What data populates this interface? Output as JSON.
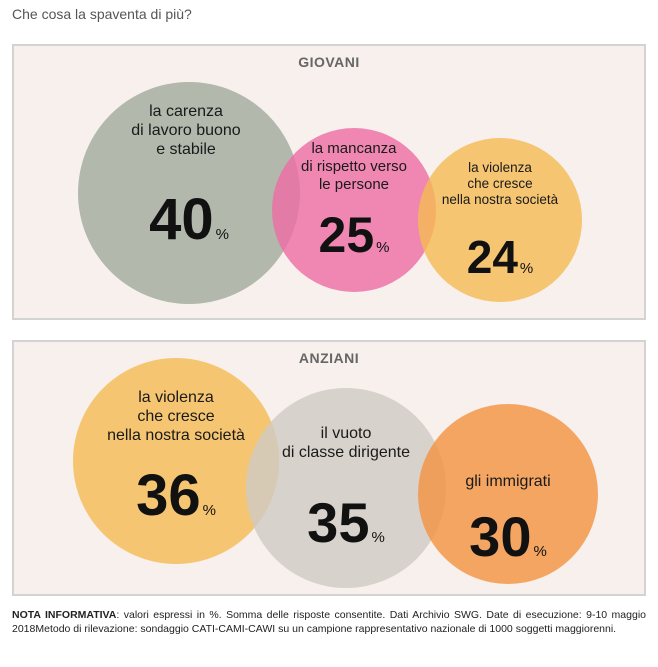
{
  "question": "Che cosa la spaventa di più?",
  "colors": {
    "gray_green": "#a2ab9c",
    "pink": "#ed6fa5",
    "light_orange": "#f5bb55",
    "light_gray": "#d0cac3",
    "orange": "#f39443"
  },
  "panels": {
    "giovani": {
      "title": "GIOVANI",
      "items": [
        {
          "label": "la carenza di lavoro buono e stabile",
          "label_lines": [
            "la carenza",
            "di lavoro buono",
            "e stabile"
          ],
          "value": "40",
          "unit": "%",
          "color": "#a2ab9c"
        },
        {
          "label": "la mancanza di rispetto verso le persone",
          "label_lines": [
            "la mancanza",
            "di rispetto verso",
            "le persone"
          ],
          "value": "25",
          "unit": "%",
          "color": "#ed6fa5"
        },
        {
          "label": "la violenza che cresce nella nostra società",
          "label_lines": [
            "la violenza",
            "che cresce",
            "nella nostra società"
          ],
          "value": "24",
          "unit": "%",
          "color": "#f5bb55"
        }
      ]
    },
    "anziani": {
      "title": "ANZIANI",
      "items": [
        {
          "label": "la violenza che cresce nella nostra società",
          "label_lines": [
            "la violenza",
            "che cresce",
            "nella nostra società"
          ],
          "value": "36",
          "unit": "%",
          "color": "#f5bb55"
        },
        {
          "label": "il vuoto di classe dirigente",
          "label_lines": [
            "il vuoto",
            "di classe dirigente"
          ],
          "value": "35",
          "unit": "%",
          "color": "#d0cac3"
        },
        {
          "label": "gli immigrati",
          "label_lines": [
            "gli immigrati"
          ],
          "value": "30",
          "unit": "%",
          "color": "#f39443"
        }
      ]
    }
  },
  "chart_data": [
    {
      "type": "bubble",
      "title": "GIOVANI",
      "categories": [
        "la carenza di lavoro buono e stabile",
        "la mancanza di rispetto verso le persone",
        "la violenza che cresce nella nostra società"
      ],
      "values": [
        40,
        25,
        24
      ],
      "unit": "%"
    },
    {
      "type": "bubble",
      "title": "ANZIANI",
      "categories": [
        "la violenza che cresce nella nostra società",
        "il vuoto di classe dirigente",
        "gli immigrati"
      ],
      "values": [
        36,
        35,
        30
      ],
      "unit": "%"
    }
  ],
  "note": {
    "label": "NOTA INFORMATIVA",
    "text": ": valori espressi in %. Somma delle risposte consentite. Dati Archivio SWG. Date di esecuzione: 9-10 maggio 2018Metodo di rilevazione: sondaggio CATI-CAMI-CAWI su un campione rappresentativo nazionale di 1000 soggetti maggiorenni."
  }
}
